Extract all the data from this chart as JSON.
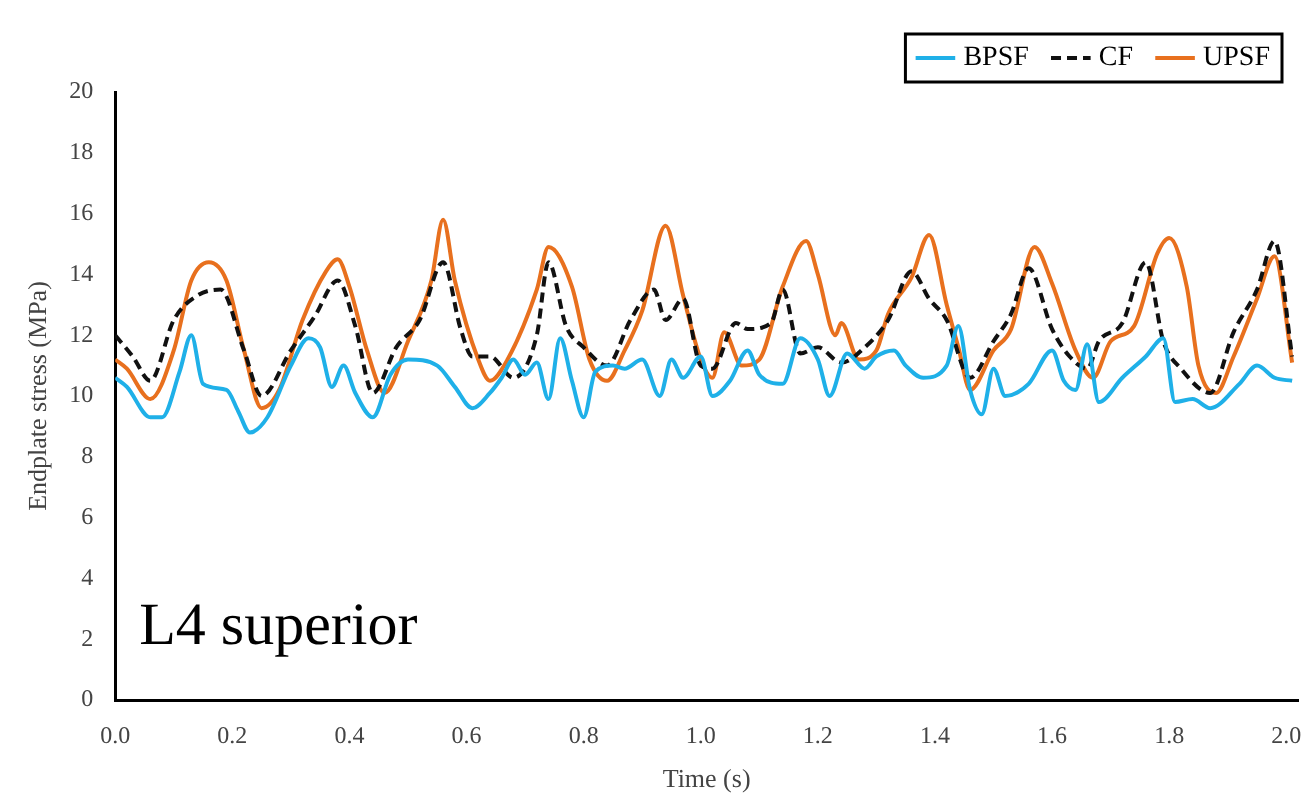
{
  "chart_data": {
    "type": "line",
    "xlabel": "Time (s)",
    "ylabel": "Endplate stress (MPa)",
    "annotations": [
      "L4 superior"
    ],
    "xlim": [
      0,
      2.02
    ],
    "xticks": [
      {
        "value": 0,
        "label": "0.0"
      },
      {
        "value": 0.2,
        "label": "0.2"
      },
      {
        "value": 0.4,
        "label": "0.4"
      },
      {
        "value": 0.6,
        "label": "0.6"
      },
      {
        "value": 0.8,
        "label": "0.8"
      },
      {
        "value": 1,
        "label": "1.0"
      },
      {
        "value": 1.2,
        "label": "1.2"
      },
      {
        "value": 1.4,
        "label": "1.4"
      },
      {
        "value": 1.6,
        "label": "1.6"
      },
      {
        "value": 1.8,
        "label": "1.8"
      },
      {
        "value": 2,
        "label": "2.0"
      }
    ],
    "ylim": [
      0,
      20
    ],
    "yticks": [
      0,
      2,
      4,
      6,
      8,
      10,
      12,
      14,
      16,
      18,
      20
    ],
    "grid": false,
    "legend": "top right",
    "marker": "none",
    "series": [
      {
        "name": "BPSF",
        "color": "#1fb0e8",
        "line_style": "solid",
        "x": [
          0,
          0.02,
          0.06,
          0.08,
          0.11,
          0.13,
          0.15,
          0.19,
          0.21,
          0.23,
          0.26,
          0.3,
          0.33,
          0.35,
          0.37,
          0.39,
          0.41,
          0.44,
          0.47,
          0.5,
          0.55,
          0.58,
          0.61,
          0.64,
          0.66,
          0.68,
          0.7,
          0.72,
          0.74,
          0.76,
          0.78,
          0.8,
          0.82,
          0.85,
          0.87,
          0.9,
          0.93,
          0.95,
          0.97,
          1,
          1.02,
          1.05,
          1.08,
          1.1,
          1.14,
          1.17,
          1.2,
          1.22,
          1.25,
          1.28,
          1.3,
          1.33,
          1.35,
          1.38,
          1.42,
          1.44,
          1.46,
          1.48,
          1.5,
          1.52,
          1.56,
          1.6,
          1.62,
          1.64,
          1.66,
          1.68,
          1.72,
          1.76,
          1.79,
          1.81,
          1.84,
          1.87,
          1.92,
          1.95,
          1.98,
          2.01
        ],
        "values": [
          10.6,
          10.3,
          9.3,
          9.3,
          10.8,
          12,
          10.4,
          10.2,
          9.5,
          8.8,
          9.3,
          11,
          11.9,
          11.6,
          10.3,
          11,
          10.1,
          9.3,
          10.7,
          11.2,
          11,
          10.3,
          9.6,
          10.1,
          10.6,
          11.2,
          10.7,
          11.1,
          9.9,
          11.9,
          10.5,
          9.3,
          10.8,
          11,
          10.9,
          11.2,
          10,
          11.2,
          10.6,
          11.3,
          10,
          10.5,
          11.5,
          10.7,
          10.4,
          11.9,
          11.2,
          10,
          11.4,
          10.9,
          11.3,
          11.5,
          11,
          10.6,
          11,
          12.3,
          10.2,
          9.4,
          10.9,
          10,
          10.4,
          11.5,
          10.5,
          10.2,
          11.7,
          9.8,
          10.6,
          11.3,
          11.9,
          9.8,
          9.9,
          9.6,
          10.4,
          11,
          10.6,
          10.5
        ]
      },
      {
        "name": "CF",
        "color": "#111111",
        "line_style": "dashed",
        "x": [
          0,
          0.03,
          0.06,
          0.1,
          0.14,
          0.18,
          0.22,
          0.25,
          0.3,
          0.34,
          0.38,
          0.41,
          0.44,
          0.48,
          0.52,
          0.56,
          0.59,
          0.61,
          0.64,
          0.68,
          0.72,
          0.74,
          0.77,
          0.8,
          0.84,
          0.88,
          0.92,
          0.94,
          0.97,
          1,
          1.02,
          1.06,
          1.08,
          1.12,
          1.14,
          1.17,
          1.2,
          1.24,
          1.28,
          1.32,
          1.36,
          1.39,
          1.42,
          1.46,
          1.5,
          1.53,
          1.56,
          1.6,
          1.63,
          1.66,
          1.68,
          1.72,
          1.76,
          1.79,
          1.82,
          1.87,
          1.91,
          1.95,
          1.98,
          2.01
        ],
        "values": [
          12,
          11.3,
          10.5,
          12.5,
          13.3,
          13.5,
          11.5,
          10,
          11.5,
          12.6,
          13.8,
          12.3,
          10.1,
          11.6,
          12.5,
          14.4,
          12.2,
          11.3,
          11.3,
          10.6,
          12,
          14.4,
          12.3,
          11.6,
          11,
          12.5,
          13.5,
          12.5,
          13.2,
          11,
          10.9,
          12.4,
          12.2,
          12.4,
          13.5,
          11.4,
          11.6,
          11.1,
          11.6,
          12.5,
          14.1,
          13.2,
          12.5,
          10.6,
          11.8,
          12.7,
          14.2,
          12.2,
          11.3,
          10.9,
          11.8,
          12.4,
          14.4,
          11.8,
          10.9,
          10.1,
          12.1,
          13.5,
          15.1,
          11.3
        ]
      },
      {
        "name": "UPSF",
        "color": "#e8701e",
        "line_style": "solid",
        "x": [
          0,
          0.02,
          0.06,
          0.1,
          0.13,
          0.16,
          0.19,
          0.22,
          0.25,
          0.28,
          0.32,
          0.36,
          0.38,
          0.4,
          0.43,
          0.46,
          0.5,
          0.54,
          0.56,
          0.58,
          0.62,
          0.64,
          0.67,
          0.72,
          0.74,
          0.78,
          0.81,
          0.84,
          0.87,
          0.9,
          0.94,
          0.97,
          1,
          1.02,
          1.04,
          1.07,
          1.1,
          1.14,
          1.18,
          1.2,
          1.23,
          1.24,
          1.27,
          1.3,
          1.32,
          1.36,
          1.39,
          1.42,
          1.44,
          1.46,
          1.5,
          1.53,
          1.57,
          1.6,
          1.64,
          1.67,
          1.7,
          1.74,
          1.78,
          1.8,
          1.83,
          1.85,
          1.88,
          1.91,
          1.95,
          1.98,
          2.01
        ],
        "values": [
          11.2,
          10.9,
          9.9,
          11.5,
          13.8,
          14.4,
          13.8,
          11.5,
          9.6,
          10.2,
          12.5,
          14.1,
          14.5,
          13.6,
          11.5,
          10.1,
          11.8,
          13.8,
          15.8,
          13.8,
          11.2,
          10.5,
          11.2,
          13.5,
          14.9,
          13.6,
          11.2,
          10.5,
          11.5,
          12.8,
          15.6,
          13.3,
          11.2,
          10.6,
          12.1,
          11,
          11.2,
          13.6,
          15.1,
          14,
          12,
          12.4,
          11.2,
          11.5,
          12.7,
          13.9,
          15.3,
          13,
          11.6,
          10.2,
          11.5,
          12.2,
          14.9,
          13.7,
          11.5,
          10.6,
          11.8,
          12.3,
          14.7,
          15.2,
          13.6,
          11,
          10.1,
          11.3,
          13.2,
          14.6,
          11.1
        ]
      }
    ]
  }
}
